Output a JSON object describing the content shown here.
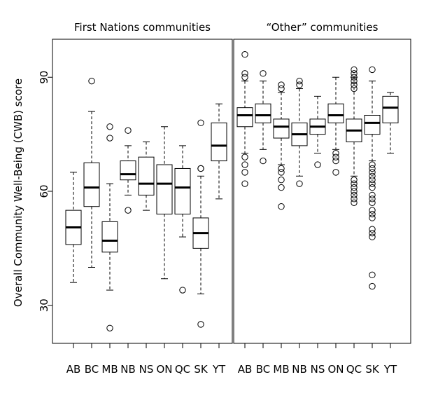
{
  "chart_data": {
    "type": "boxplot",
    "ylabel": "Overall Community Well-Being (CWB) score",
    "ylim": [
      20,
      100
    ],
    "yticks": [
      30,
      60,
      90
    ],
    "categories": [
      "AB",
      "BC",
      "MB",
      "NB",
      "NS",
      "ON",
      "QC",
      "SK",
      "YT"
    ],
    "panels": [
      {
        "title": "First Nations communities",
        "boxes": [
          {
            "category": "AB",
            "min": 36,
            "q1": 46,
            "median": 50.5,
            "q3": 55,
            "max": 65,
            "outliers": []
          },
          {
            "category": "BC",
            "min": 40,
            "q1": 56,
            "median": 61,
            "q3": 67.5,
            "max": 81,
            "outliers": [
              89
            ]
          },
          {
            "category": "MB",
            "min": 34,
            "q1": 44,
            "median": 47,
            "q3": 52,
            "max": 62,
            "outliers": [
              77,
              74,
              24
            ]
          },
          {
            "category": "NB",
            "min": 59,
            "q1": 63,
            "median": 64.5,
            "q3": 68,
            "max": 72,
            "outliers": [
              76,
              55
            ]
          },
          {
            "category": "NS",
            "min": 55,
            "q1": 59,
            "median": 62,
            "q3": 69,
            "max": 73,
            "outliers": []
          },
          {
            "category": "ON",
            "min": 37,
            "q1": 54,
            "median": 62,
            "q3": 67,
            "max": 77,
            "outliers": []
          },
          {
            "category": "QC",
            "min": 48,
            "q1": 54,
            "median": 61,
            "q3": 66,
            "max": 72,
            "outliers": [
              34
            ]
          },
          {
            "category": "SK",
            "min": 33,
            "q1": 45,
            "median": 49,
            "q3": 53,
            "max": 64,
            "outliers": [
              78,
              66,
              66,
              25
            ]
          },
          {
            "category": "YT",
            "min": 58,
            "q1": 68,
            "median": 72,
            "q3": 78,
            "max": 83,
            "outliers": []
          }
        ]
      },
      {
        "title": "“Other” communities",
        "boxes": [
          {
            "category": "AB",
            "min": 70,
            "q1": 77,
            "median": 80,
            "q3": 82,
            "max": 89,
            "outliers": [
              96,
              91,
              90,
              69,
              67,
              65,
              62
            ]
          },
          {
            "category": "BC",
            "min": 71,
            "q1": 78,
            "median": 80,
            "q3": 83,
            "max": 89,
            "outliers": [
              91,
              68
            ]
          },
          {
            "category": "MB",
            "min": 67,
            "q1": 74,
            "median": 77,
            "q3": 79,
            "max": 86,
            "outliers": [
              88,
              87,
              66,
              65,
              63,
              61,
              56
            ]
          },
          {
            "category": "NB",
            "min": 64,
            "q1": 72,
            "median": 75,
            "q3": 78,
            "max": 87,
            "outliers": [
              89,
              88,
              62
            ]
          },
          {
            "category": "NS",
            "min": 70,
            "q1": 75,
            "median": 77,
            "q3": 79,
            "max": 85,
            "outliers": [
              67
            ]
          },
          {
            "category": "ON",
            "min": 71,
            "q1": 78,
            "median": 80,
            "q3": 83,
            "max": 90,
            "outliers": [
              70,
              69,
              68,
              65
            ]
          },
          {
            "category": "QC",
            "min": 64,
            "q1": 73,
            "median": 76,
            "q3": 79,
            "max": 90,
            "outliers": [
              92,
              91,
              90,
              89,
              88,
              87,
              63,
              62,
              61,
              60,
              59,
              58,
              57
            ]
          },
          {
            "category": "SK",
            "min": 68,
            "q1": 75,
            "median": 78,
            "q3": 80,
            "max": 89,
            "outliers": [
              92,
              67,
              66,
              65,
              64,
              63,
              62,
              61,
              59,
              58,
              57,
              55,
              54,
              53,
              50,
              49,
              48,
              38,
              35
            ]
          },
          {
            "category": "YT",
            "min": 70,
            "q1": 78,
            "median": 82,
            "q3": 85,
            "max": 86,
            "outliers": []
          }
        ]
      }
    ]
  }
}
